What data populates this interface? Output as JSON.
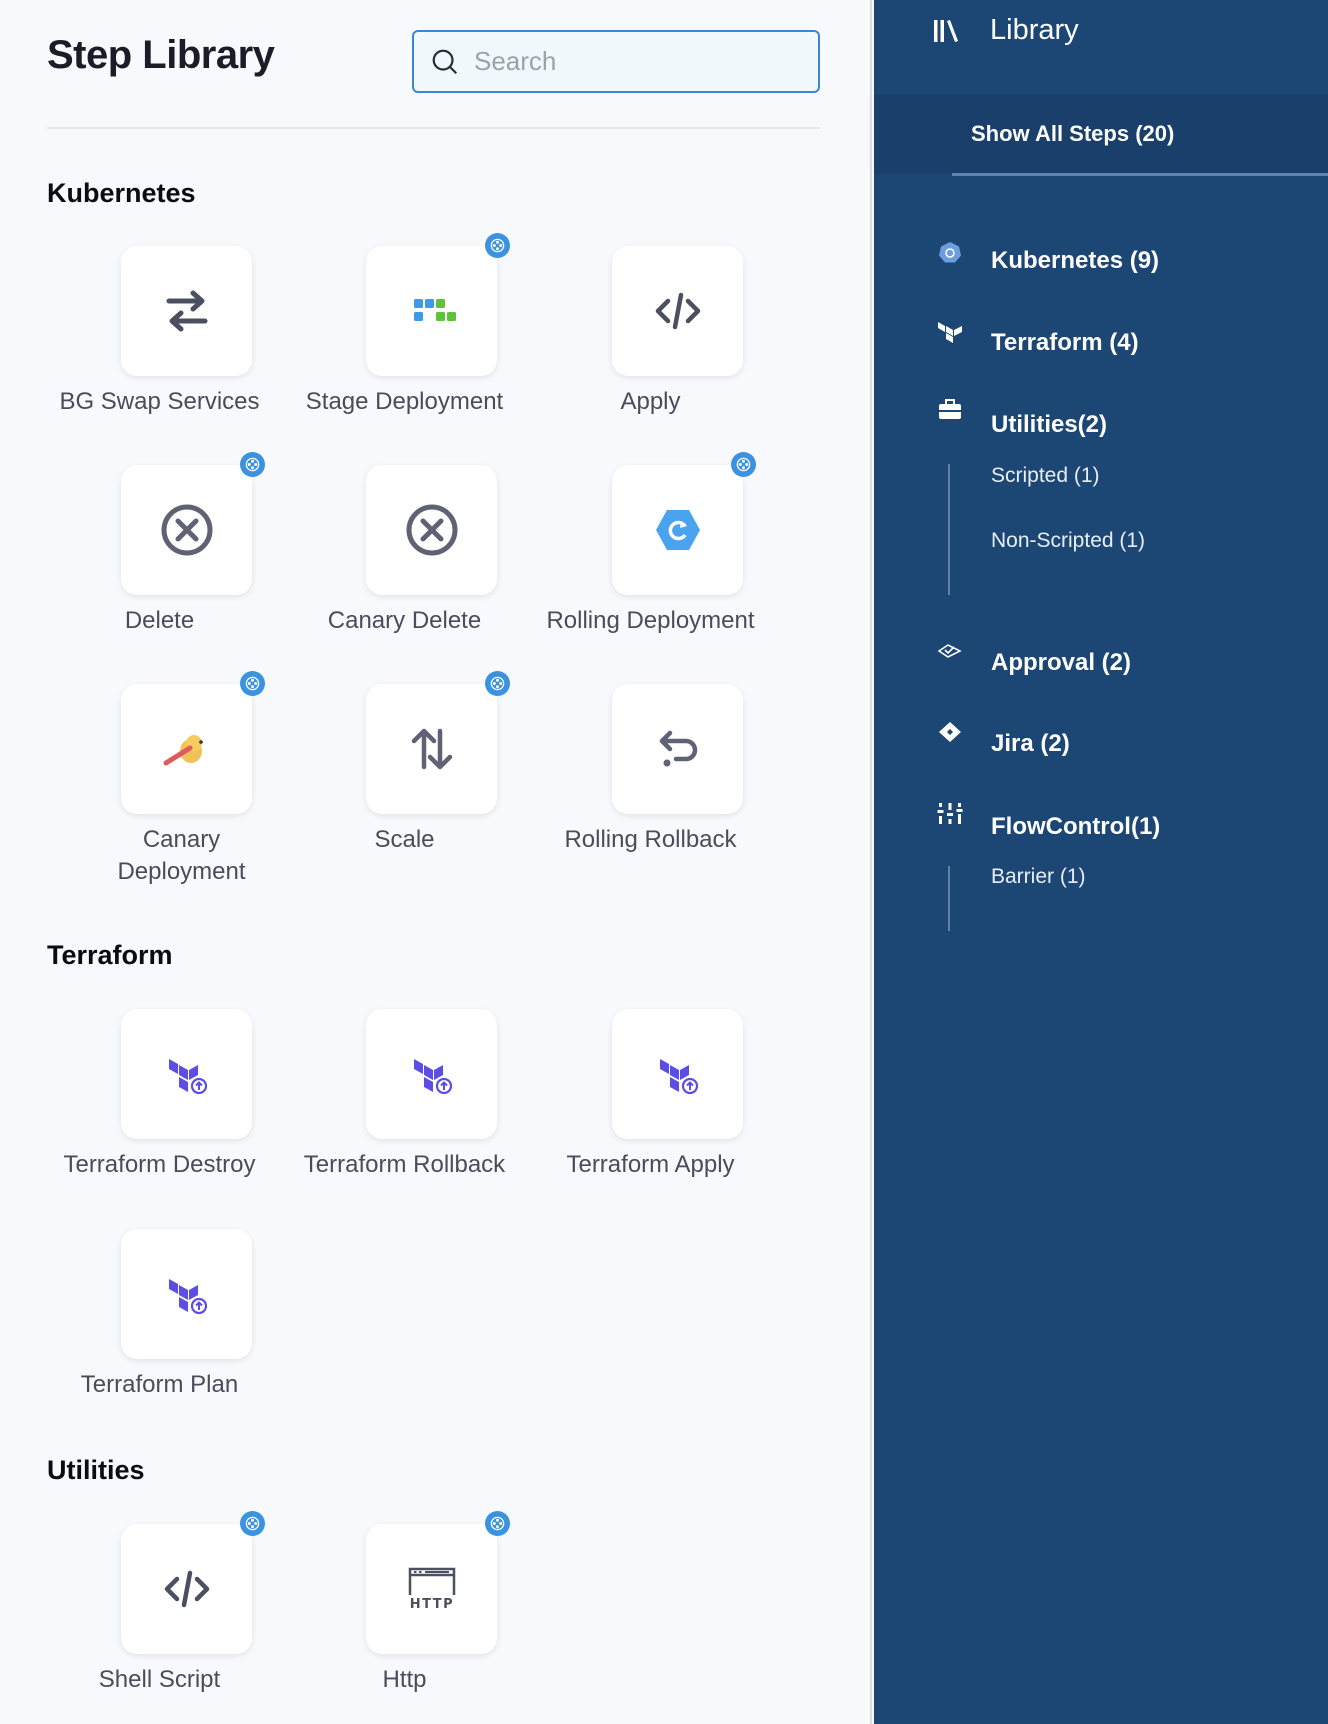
{
  "header": {
    "title": "Step Library",
    "search_placeholder": "Search"
  },
  "sections": [
    {
      "title": "Kubernetes",
      "steps": [
        {
          "label": "BG Swap Services",
          "icon": "swap-arrows-icon",
          "badge": false
        },
        {
          "label": "Stage Deployment",
          "icon": "stage-deployment-icon",
          "badge": true
        },
        {
          "label": "Apply",
          "icon": "code-icon",
          "badge": false
        },
        {
          "label": "Delete",
          "icon": "circle-x-icon",
          "badge": true
        },
        {
          "label": "Canary Delete",
          "icon": "circle-x-icon",
          "badge": false
        },
        {
          "label": "Rolling Deployment",
          "icon": "hexagon-refresh-icon",
          "badge": true
        },
        {
          "label": "Canary Deployment",
          "icon": "canary-bird-icon",
          "badge": true
        },
        {
          "label": "Scale",
          "icon": "up-down-arrows-icon",
          "badge": true
        },
        {
          "label": "Rolling Rollback",
          "icon": "undo-arrow-icon",
          "badge": false
        }
      ]
    },
    {
      "title": "Terraform",
      "steps": [
        {
          "label": "Terraform Destroy",
          "icon": "terraform-icon",
          "badge": false
        },
        {
          "label": "Terraform Rollback",
          "icon": "terraform-icon",
          "badge": false
        },
        {
          "label": "Terraform Apply",
          "icon": "terraform-icon",
          "badge": false
        },
        {
          "label": "Terraform Plan",
          "icon": "terraform-icon",
          "badge": false
        }
      ]
    },
    {
      "title": "Utilities",
      "steps": [
        {
          "label": "Shell Script",
          "icon": "code-icon",
          "badge": true
        },
        {
          "label": "Http",
          "icon": "http-icon",
          "badge": true
        }
      ]
    }
  ],
  "sidebar": {
    "title": "Library",
    "show_all": "Show All Steps (20)",
    "items": [
      {
        "label": "Kubernetes (9)",
        "icon": "kubernetes-icon"
      },
      {
        "label": "Terraform (4)",
        "icon": "terraform-icon"
      },
      {
        "label": "Utilities(2)",
        "icon": "toolbox-icon",
        "children": [
          "Scripted (1)",
          "Non-Scripted (1)"
        ]
      },
      {
        "label": "Approval (2)",
        "icon": "approval-icon"
      },
      {
        "label": "Jira (2)",
        "icon": "jira-icon"
      },
      {
        "label": "FlowControl(1)",
        "icon": "sliders-icon",
        "children": [
          "Barrier (1)"
        ]
      }
    ]
  },
  "colors": {
    "accent": "#3d85d8",
    "sidebar_bg": "#1c4674",
    "badge": "#3b92e0",
    "terraform": "#5c4ee5"
  }
}
